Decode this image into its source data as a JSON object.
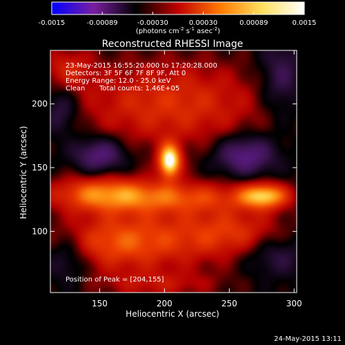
{
  "chart_data": {
    "type": "heatmap",
    "title": "Reconstructed RHESSI Image",
    "xlabel": "Heliocentric X (arcsec)",
    "ylabel": "Heliocentric Y (arcsec)",
    "xlim": [
      112,
      302
    ],
    "ylim": [
      52,
      242
    ],
    "x_ticks": [
      150,
      200,
      250,
      300
    ],
    "y_ticks": [
      100,
      150,
      200
    ],
    "colorbar": {
      "range": [
        -0.0015,
        0.0015
      ],
      "tick_labels": [
        "-0.0015",
        "-0.00089",
        "-0.00030",
        "0.00030",
        "0.00089",
        "0.0015"
      ],
      "units_label_parts": [
        "(photons cm",
        "-2",
        " s",
        "-1",
        " asec",
        "-2",
        ")"
      ],
      "colors": [
        "#0000ff",
        "#7a1fa0",
        "#000000",
        "#c00000",
        "#ff7a00",
        "#ffe060",
        "#ffffff"
      ]
    },
    "annotations": {
      "time_range": "23-May-2015 16:55:20.000 to 17:20:28.000",
      "detectors": "Detectors: 3F 5F 6F 7F 8F 9F, Att 0",
      "energy_range": "Energy Range: 12.0 - 25.0 keV",
      "clean": "Clean",
      "total_counts": "Total counts: 1.46E+05",
      "peak_position": "Position of Peak = [204,155]"
    },
    "peak": [
      204,
      155
    ],
    "sources": [
      {
        "x": 204,
        "y": 155,
        "sx": 6,
        "sy": 9,
        "amp": 1.0
      },
      {
        "x": 277,
        "y": 128,
        "sx": 13,
        "sy": 7,
        "amp": 0.72
      },
      {
        "x": 150,
        "y": 130,
        "sx": 28,
        "sy": 10,
        "amp": 0.5
      },
      {
        "x": 210,
        "y": 127,
        "sx": 45,
        "sy": 9,
        "amp": 0.45
      },
      {
        "x": 205,
        "y": 200,
        "sx": 55,
        "sy": 25,
        "amp": 0.42
      },
      {
        "x": 200,
        "y": 95,
        "sx": 55,
        "sy": 18,
        "amp": 0.36
      },
      {
        "x": 160,
        "y": 90,
        "sx": 30,
        "sy": 15,
        "amp": 0.28
      },
      {
        "x": 255,
        "y": 100,
        "sx": 25,
        "sy": 12,
        "amp": 0.25
      },
      {
        "x": 125,
        "y": 228,
        "sx": 14,
        "sy": 12,
        "amp": 0.3
      },
      {
        "x": 195,
        "y": 58,
        "sx": 35,
        "sy": 8,
        "amp": 0.25
      },
      {
        "x": 150,
        "y": 160,
        "sx": 14,
        "sy": 10,
        "amp": -0.45
      },
      {
        "x": 262,
        "y": 160,
        "sx": 16,
        "sy": 11,
        "amp": -0.48
      },
      {
        "x": 290,
        "y": 220,
        "sx": 12,
        "sy": 22,
        "amp": -0.3
      },
      {
        "x": 120,
        "y": 195,
        "sx": 10,
        "sy": 14,
        "amp": -0.3
      },
      {
        "x": 125,
        "y": 80,
        "sx": 12,
        "sy": 14,
        "amp": -0.28
      },
      {
        "x": 285,
        "y": 82,
        "sx": 18,
        "sy": 12,
        "amp": -0.26
      }
    ]
  },
  "footer": {
    "timestamp": "24-May-2015 13:11"
  }
}
